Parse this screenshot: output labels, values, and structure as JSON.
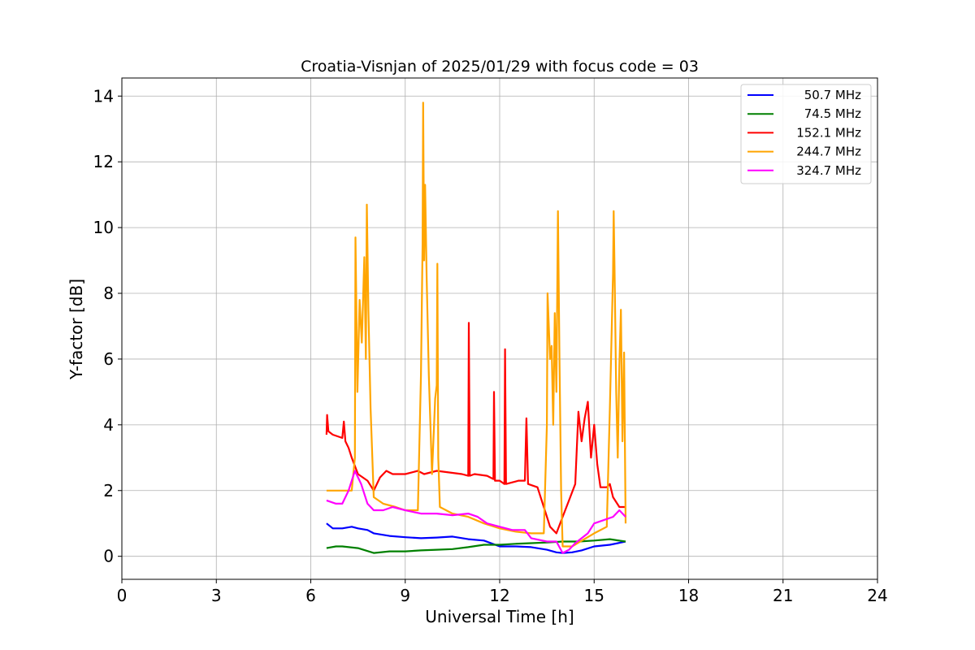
{
  "chart_data": {
    "type": "line",
    "title": "Croatia-Visnjan of 2025/01/29 with focus code = 03",
    "xlabel": "Universal Time [h]",
    "ylabel": "Y-factor [dB]",
    "xlim": [
      0,
      24
    ],
    "ylim": [
      -0.7,
      14.55
    ],
    "xticks": [
      0,
      3,
      6,
      9,
      12,
      15,
      18,
      21,
      24
    ],
    "yticks": [
      0,
      2,
      4,
      6,
      8,
      10,
      12,
      14
    ],
    "grid": true,
    "legend_position": "top-right",
    "series": [
      {
        "name": "50.7 MHz",
        "color": "#0000ff",
        "x": [
          6.5,
          6.7,
          7.0,
          7.3,
          7.5,
          7.8,
          8.0,
          8.5,
          9.0,
          9.5,
          10.0,
          10.5,
          11.0,
          11.5,
          12.0,
          12.5,
          13.0,
          13.5,
          13.8,
          14.0,
          14.3,
          14.6,
          15.0,
          15.5,
          16.0
        ],
        "y": [
          1.0,
          0.85,
          0.85,
          0.9,
          0.85,
          0.8,
          0.7,
          0.62,
          0.58,
          0.55,
          0.57,
          0.6,
          0.52,
          0.48,
          0.3,
          0.3,
          0.28,
          0.2,
          0.12,
          0.1,
          0.12,
          0.18,
          0.3,
          0.35,
          0.45
        ]
      },
      {
        "name": "74.5 MHz",
        "color": "#008000",
        "x": [
          6.5,
          6.8,
          7.0,
          7.5,
          8.0,
          8.5,
          9.0,
          9.5,
          10.0,
          10.5,
          11.0,
          11.5,
          12.0,
          12.5,
          13.0,
          13.5,
          14.0,
          14.5,
          15.0,
          15.5,
          16.0
        ],
        "y": [
          0.25,
          0.3,
          0.3,
          0.25,
          0.1,
          0.15,
          0.15,
          0.18,
          0.2,
          0.22,
          0.28,
          0.35,
          0.35,
          0.38,
          0.4,
          0.42,
          0.45,
          0.45,
          0.48,
          0.52,
          0.45
        ]
      },
      {
        "name": "152.1 MHz",
        "color": "#ff0000",
        "x": [
          6.5,
          6.52,
          6.56,
          6.7,
          7.0,
          7.05,
          7.1,
          7.2,
          7.3,
          7.5,
          7.8,
          8.0,
          8.2,
          8.4,
          8.6,
          9.0,
          9.4,
          9.6,
          10.0,
          10.4,
          10.8,
          11.0,
          11.02,
          11.05,
          11.2,
          11.6,
          11.8,
          11.82,
          11.85,
          12.0,
          12.15,
          12.17,
          12.2,
          12.6,
          12.8,
          12.85,
          12.9,
          13.2,
          13.4,
          13.6,
          13.8,
          14.0,
          14.2,
          14.4,
          14.5,
          14.6,
          14.7,
          14.8,
          14.9,
          15.0,
          15.1,
          15.2,
          15.4,
          15.5,
          15.6,
          15.8,
          16.0
        ],
        "y": [
          3.7,
          4.3,
          3.8,
          3.7,
          3.6,
          4.1,
          3.5,
          3.3,
          3.0,
          2.5,
          2.3,
          2.0,
          2.4,
          2.6,
          2.5,
          2.5,
          2.6,
          2.5,
          2.6,
          2.55,
          2.5,
          2.45,
          7.1,
          2.45,
          2.5,
          2.45,
          2.35,
          5.0,
          2.3,
          2.3,
          2.2,
          6.3,
          2.2,
          2.3,
          2.3,
          4.2,
          2.2,
          2.1,
          1.5,
          0.9,
          0.7,
          1.2,
          1.7,
          2.2,
          4.4,
          3.5,
          4.2,
          4.7,
          3.0,
          4.0,
          2.8,
          2.1,
          2.1,
          2.2,
          1.8,
          1.5,
          1.5
        ]
      },
      {
        "name": "244.7 MHz",
        "color": "#ffa500",
        "x": [
          6.5,
          7.0,
          7.3,
          7.4,
          7.42,
          7.48,
          7.55,
          7.62,
          7.7,
          7.75,
          7.78,
          7.83,
          7.9,
          8.0,
          8.3,
          8.7,
          9.0,
          9.4,
          9.5,
          9.55,
          9.57,
          9.6,
          9.63,
          9.68,
          9.75,
          9.85,
          9.95,
          10.0,
          10.02,
          10.05,
          10.1,
          10.5,
          11.0,
          11.5,
          12.0,
          12.5,
          13.0,
          13.4,
          13.5,
          13.52,
          13.6,
          13.65,
          13.7,
          13.75,
          13.8,
          13.85,
          13.9,
          13.95,
          14.0,
          14.3,
          15.0,
          15.4,
          15.5,
          15.6,
          15.62,
          15.65,
          15.7,
          15.75,
          15.8,
          15.85,
          15.9,
          15.95,
          16.0
        ],
        "y": [
          2.0,
          2.0,
          2.0,
          3.0,
          9.7,
          5.0,
          7.8,
          6.5,
          9.1,
          6.0,
          10.7,
          7.5,
          4.5,
          1.8,
          1.6,
          1.5,
          1.4,
          1.4,
          5.5,
          9.5,
          13.8,
          9.0,
          11.3,
          8.5,
          5.5,
          2.5,
          4.8,
          5.2,
          8.9,
          3.0,
          1.5,
          1.3,
          1.2,
          1.0,
          0.85,
          0.75,
          0.7,
          0.7,
          4.0,
          8.0,
          6.0,
          6.4,
          4.0,
          7.4,
          5.0,
          10.5,
          6.0,
          2.0,
          0.3,
          0.3,
          0.7,
          0.9,
          4.5,
          8.6,
          10.5,
          8.7,
          5.0,
          3.0,
          5.8,
          7.5,
          3.5,
          6.2,
          1.0
        ]
      },
      {
        "name": "324.7 MHz",
        "color": "#ff00ff",
        "x": [
          6.5,
          6.8,
          7.0,
          7.2,
          7.4,
          7.6,
          7.8,
          8.0,
          8.3,
          8.6,
          9.0,
          9.5,
          10.0,
          10.5,
          11.0,
          11.3,
          11.6,
          12.0,
          12.4,
          12.8,
          13.0,
          13.5,
          13.8,
          14.0,
          14.2,
          14.4,
          14.8,
          15.0,
          15.3,
          15.6,
          15.8,
          16.0
        ],
        "y": [
          1.7,
          1.6,
          1.6,
          2.0,
          2.6,
          2.2,
          1.6,
          1.4,
          1.4,
          1.5,
          1.4,
          1.3,
          1.3,
          1.25,
          1.3,
          1.2,
          1.0,
          0.9,
          0.8,
          0.8,
          0.55,
          0.45,
          0.45,
          0.1,
          0.2,
          0.4,
          0.7,
          1.0,
          1.1,
          1.2,
          1.4,
          1.2
        ]
      }
    ]
  }
}
